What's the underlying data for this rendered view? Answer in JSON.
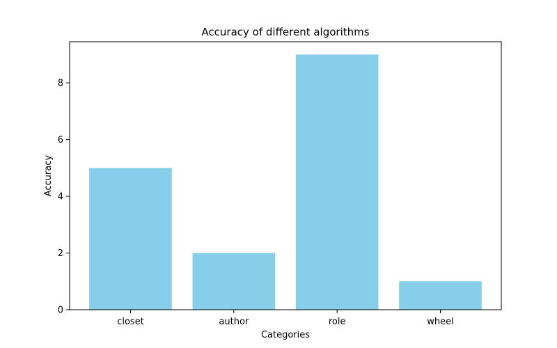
{
  "chart_data": {
    "type": "bar",
    "title": "Accuracy of different algorithms",
    "xlabel": "Categories",
    "ylabel": "Accuracy",
    "categories": [
      "closet",
      "author",
      "role",
      "wheel"
    ],
    "values": [
      5,
      2,
      9,
      1
    ],
    "ylim": [
      0,
      9.45
    ],
    "yticks": [
      0,
      2,
      4,
      6,
      8
    ],
    "grid": false,
    "bar_color": "#87CEEB"
  }
}
